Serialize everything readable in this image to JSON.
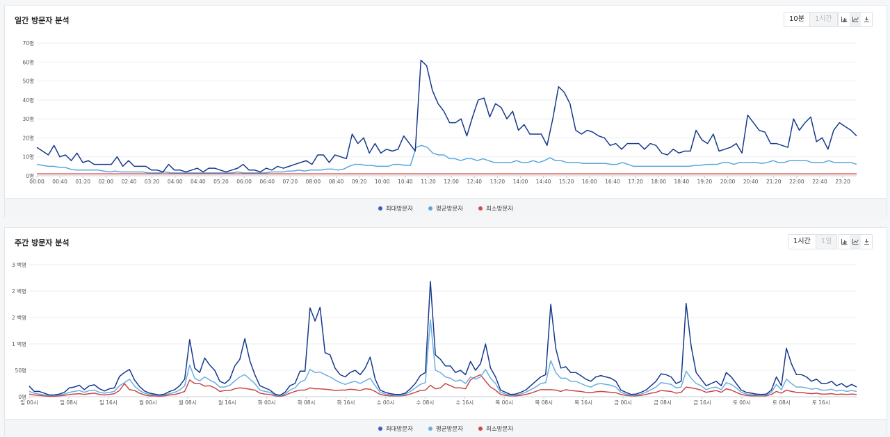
{
  "daily": {
    "title": "일간 방문자 분석",
    "tabs": [
      {
        "label": "10분",
        "active": true
      },
      {
        "label": "1시간",
        "active": false
      }
    ],
    "icons": [
      "bar-chart-icon",
      "line-chart-icon",
      "download-icon"
    ],
    "legend": [
      "최대방문자",
      "평균방문자",
      "최소방문자"
    ]
  },
  "weekly": {
    "title": "주간 방문자 분석",
    "tabs": [
      {
        "label": "1시간",
        "active": true
      },
      {
        "label": "1일",
        "active": false
      }
    ],
    "icons": [
      "bar-chart-icon",
      "line-chart-icon",
      "download-icon"
    ],
    "legend": [
      "최대방문자",
      "평균방문자",
      "최소방문자"
    ]
  },
  "chart_data": [
    {
      "type": "line",
      "title": "일간 방문자 분석",
      "ylim": [
        0,
        70
      ],
      "y_ticks": [
        "0명",
        "10명",
        "20명",
        "30명",
        "40명",
        "50명",
        "60명",
        "70명"
      ],
      "x_ticks": [
        "00:00",
        "00:40",
        "01:20",
        "02:00",
        "02:40",
        "03:20",
        "04:00",
        "04:40",
        "05:20",
        "06:00",
        "06:40",
        "07:20",
        "08:00",
        "08:40",
        "09:20",
        "10:00",
        "10:40",
        "11:20",
        "12:00",
        "12:40",
        "13:20",
        "14:00",
        "14:40",
        "15:20",
        "16:00",
        "16:40",
        "17:20",
        "18:00",
        "18:40",
        "19:20",
        "20:00",
        "20:40",
        "21:20",
        "22:00",
        "22:40",
        "23:20"
      ],
      "grid": true,
      "legend_position": "bottom",
      "colors": [
        "#16388c",
        "#5aa5de",
        "#d24a4a"
      ],
      "series": [
        {
          "name": "최대방문자",
          "values": [
            15,
            13,
            11,
            16,
            10,
            11,
            8,
            12,
            7,
            8,
            6,
            6,
            6,
            6,
            10,
            5,
            8,
            5,
            5,
            5,
            3,
            3,
            2,
            6,
            3,
            3,
            2,
            3,
            4,
            2,
            4,
            4,
            3,
            2,
            3,
            4,
            6,
            3,
            3,
            2,
            4,
            3,
            5,
            4,
            5,
            6,
            7,
            8,
            6,
            11,
            11,
            7,
            11,
            10,
            9,
            22,
            17,
            20,
            12,
            17,
            12,
            14,
            13,
            14,
            21,
            17,
            13,
            61,
            58,
            45,
            38,
            34,
            28,
            28,
            30,
            21,
            31,
            40,
            41,
            31,
            38,
            36,
            30,
            34,
            24,
            27,
            22,
            22,
            22,
            16,
            30,
            47,
            44,
            38,
            24,
            22,
            24,
            23,
            21,
            20,
            16,
            17,
            14,
            17,
            17,
            17,
            14,
            17,
            16,
            12,
            11,
            14,
            12,
            13,
            13,
            24,
            19,
            17,
            22,
            13,
            14,
            15,
            17,
            12,
            32,
            28,
            24,
            23,
            17,
            17,
            16,
            15,
            30,
            24,
            28,
            31,
            18,
            20,
            14,
            24,
            28,
            26,
            24,
            21
          ]
        },
        {
          "name": "평균방문자",
          "values": [
            6,
            5.5,
            5,
            5,
            4.5,
            4.5,
            3.5,
            3,
            3,
            3,
            3,
            3,
            2.5,
            2,
            2.5,
            2,
            2,
            2,
            2,
            2,
            1.5,
            1.5,
            1.5,
            2,
            1.5,
            1.5,
            1.5,
            1.5,
            1.5,
            1.5,
            1.5,
            1.5,
            1.5,
            1.5,
            1.5,
            1.5,
            2,
            1.5,
            1.5,
            1.5,
            1.5,
            1.5,
            2,
            2,
            2,
            2.5,
            2.5,
            3,
            2.5,
            3,
            3,
            3,
            3.5,
            3.5,
            3,
            3.5,
            5,
            6,
            6,
            5.5,
            5.5,
            5,
            5,
            5,
            6,
            6,
            5.5,
            5.5,
            15,
            16,
            15,
            12,
            11,
            11,
            9,
            9,
            8,
            9,
            9,
            8,
            9,
            8,
            7,
            7,
            7,
            7,
            8,
            7,
            7,
            8,
            7,
            8,
            9.5,
            8,
            8,
            7,
            7,
            7,
            6.5,
            6.5,
            6.5,
            6.5,
            6.5,
            6,
            6,
            7,
            6,
            5,
            5,
            5,
            5,
            5,
            5,
            5,
            5,
            5,
            5,
            5,
            5.5,
            5.5,
            6,
            6,
            6,
            7,
            7,
            6,
            7,
            7,
            7,
            7,
            6.5,
            7,
            8,
            7,
            7,
            8,
            8,
            8,
            8,
            7,
            7,
            7,
            8,
            7,
            7,
            7,
            7,
            6
          ]
        },
        {
          "name": "최소방문자",
          "values": [
            1,
            1,
            1,
            1,
            1,
            1,
            1,
            1,
            1,
            1,
            1,
            1,
            1,
            1,
            1,
            1,
            1,
            1,
            1,
            1,
            1,
            1,
            1,
            1,
            1,
            1,
            1,
            1,
            1,
            1,
            1,
            1,
            1,
            1,
            1,
            1,
            1,
            1,
            1,
            1,
            1,
            1,
            1,
            1,
            1,
            1,
            1,
            1,
            1,
            1,
            1,
            1,
            1,
            1,
            1,
            1,
            1,
            1,
            1,
            1,
            1,
            1,
            1,
            1,
            1,
            1,
            1,
            1,
            1,
            1,
            1,
            1,
            1,
            1,
            1,
            1,
            1,
            1,
            1,
            1,
            1,
            1,
            1,
            1,
            1,
            1,
            1,
            1,
            1,
            1,
            1,
            1,
            1,
            1,
            1,
            1,
            1,
            1,
            1,
            1,
            1,
            1,
            1,
            1,
            1,
            1,
            1,
            1,
            1,
            1,
            1,
            1,
            1,
            1,
            1,
            1,
            1,
            1,
            1,
            1,
            1,
            1,
            1,
            1,
            1,
            1,
            1,
            1,
            1,
            1,
            1,
            1,
            1,
            1,
            1,
            1,
            1,
            1,
            1,
            1,
            1,
            1,
            1,
            1
          ]
        }
      ]
    },
    {
      "type": "line",
      "title": "주간 방문자 분석",
      "ylim": [
        0,
        3
      ],
      "y_ticks": [
        "0명",
        "50명",
        "1 백명",
        "2 백명",
        "2 백명",
        "3 백명"
      ],
      "x_ticks": [
        "일 00시",
        "일 08시",
        "일 16시",
        "월 00시",
        "월 08시",
        "월 16시",
        "화 00시",
        "화 08시",
        "화 16시",
        "수 00시",
        "수 08시",
        "수 16시",
        "목 00시",
        "목 08시",
        "목 16시",
        "금 00시",
        "금 08시",
        "금 16시",
        "토 00시",
        "토 08시",
        "토 16시"
      ],
      "grid": true,
      "legend_position": "bottom",
      "colors": [
        "#16388c",
        "#6aaee2",
        "#c94747"
      ],
      "series": [
        {
          "name": "최대방문자",
          "values": [
            0.24,
            0.12,
            0.12,
            0.08,
            0.04,
            0.04,
            0.06,
            0.1,
            0.2,
            0.22,
            0.26,
            0.16,
            0.25,
            0.27,
            0.18,
            0.13,
            0.18,
            0.2,
            0.46,
            0.55,
            0.62,
            0.38,
            0.23,
            0.13,
            0.08,
            0.06,
            0.04,
            0.06,
            0.12,
            0.16,
            0.25,
            0.4,
            1.3,
            0.65,
            0.55,
            0.88,
            0.72,
            0.6,
            0.35,
            0.3,
            0.4,
            0.7,
            0.85,
            1.32,
            0.82,
            0.5,
            0.25,
            0.2,
            0.15,
            0.06,
            0.03,
            0.1,
            0.25,
            0.3,
            0.58,
            0.58,
            2.02,
            1.72,
            2.03,
            1.0,
            0.95,
            0.65,
            0.5,
            0.45,
            0.55,
            0.6,
            0.5,
            0.65,
            0.9,
            0.4,
            0.15,
            0.1,
            0.07,
            0.05,
            0.05,
            0.08,
            0.18,
            0.3,
            0.48,
            0.55,
            2.62,
            0.95,
            0.85,
            0.7,
            0.7,
            0.55,
            0.6,
            0.5,
            0.8,
            0.6,
            0.75,
            1.2,
            0.65,
            0.45,
            0.15,
            0.1,
            0.05,
            0.06,
            0.1,
            0.15,
            0.25,
            0.35,
            0.45,
            0.5,
            2.1,
            1.1,
            0.65,
            0.68,
            0.55,
            0.55,
            0.48,
            0.4,
            0.35,
            0.45,
            0.48,
            0.45,
            0.42,
            0.35,
            0.15,
            0.1,
            0.05,
            0.06,
            0.1,
            0.15,
            0.25,
            0.35,
            0.52,
            0.5,
            0.45,
            0.3,
            0.35,
            2.12,
            1.15,
            0.55,
            0.4,
            0.25,
            0.3,
            0.35,
            0.25,
            0.55,
            0.45,
            0.3,
            0.15,
            0.1,
            0.08,
            0.06,
            0.05,
            0.06,
            0.15,
            0.45,
            0.25,
            1.1,
            0.75,
            0.5,
            0.5,
            0.45,
            0.35,
            0.4,
            0.3,
            0.3,
            0.35,
            0.25,
            0.3,
            0.22,
            0.28,
            0.22
          ]
        },
        {
          "name": "평균방문자",
          "values": [
            0.12,
            0.08,
            0.06,
            0.04,
            0.03,
            0.03,
            0.04,
            0.06,
            0.1,
            0.12,
            0.14,
            0.1,
            0.14,
            0.15,
            0.1,
            0.08,
            0.1,
            0.12,
            0.25,
            0.32,
            0.4,
            0.24,
            0.14,
            0.08,
            0.05,
            0.04,
            0.03,
            0.04,
            0.07,
            0.1,
            0.15,
            0.25,
            0.72,
            0.42,
            0.36,
            0.45,
            0.38,
            0.32,
            0.22,
            0.22,
            0.26,
            0.36,
            0.45,
            0.5,
            0.4,
            0.3,
            0.15,
            0.12,
            0.1,
            0.04,
            0.02,
            0.06,
            0.15,
            0.2,
            0.33,
            0.38,
            0.62,
            0.55,
            0.56,
            0.5,
            0.45,
            0.38,
            0.32,
            0.28,
            0.32,
            0.35,
            0.3,
            0.36,
            0.42,
            0.25,
            0.1,
            0.06,
            0.05,
            0.03,
            0.03,
            0.05,
            0.12,
            0.2,
            0.28,
            0.32,
            1.75,
            0.6,
            0.55,
            0.45,
            0.42,
            0.35,
            0.38,
            0.3,
            0.45,
            0.4,
            0.45,
            0.62,
            0.42,
            0.3,
            0.1,
            0.06,
            0.03,
            0.04,
            0.06,
            0.1,
            0.16,
            0.22,
            0.3,
            0.32,
            0.82,
            0.55,
            0.42,
            0.42,
            0.35,
            0.35,
            0.3,
            0.25,
            0.22,
            0.28,
            0.3,
            0.28,
            0.26,
            0.22,
            0.1,
            0.06,
            0.03,
            0.04,
            0.06,
            0.1,
            0.16,
            0.22,
            0.32,
            0.3,
            0.28,
            0.2,
            0.22,
            0.58,
            0.42,
            0.3,
            0.25,
            0.16,
            0.2,
            0.22,
            0.16,
            0.32,
            0.28,
            0.2,
            0.1,
            0.06,
            0.05,
            0.04,
            0.03,
            0.04,
            0.1,
            0.28,
            0.16,
            0.4,
            0.3,
            0.22,
            0.22,
            0.2,
            0.17,
            0.19,
            0.15,
            0.15,
            0.17,
            0.13,
            0.15,
            0.12,
            0.14,
            0.12
          ]
        },
        {
          "name": "최소방문자",
          "values": [
            0.06,
            0.04,
            0.03,
            0.02,
            0.01,
            0.01,
            0.02,
            0.03,
            0.05,
            0.06,
            0.07,
            0.05,
            0.07,
            0.08,
            0.05,
            0.04,
            0.05,
            0.07,
            0.14,
            0.3,
            0.16,
            0.14,
            0.08,
            0.04,
            0.02,
            0.02,
            0.01,
            0.02,
            0.04,
            0.05,
            0.08,
            0.12,
            0.38,
            0.3,
            0.3,
            0.24,
            0.25,
            0.2,
            0.12,
            0.14,
            0.14,
            0.18,
            0.2,
            0.19,
            0.17,
            0.15,
            0.08,
            0.06,
            0.05,
            0.02,
            0.01,
            0.03,
            0.08,
            0.12,
            0.15,
            0.15,
            0.2,
            0.18,
            0.18,
            0.17,
            0.16,
            0.14,
            0.15,
            0.15,
            0.17,
            0.16,
            0.14,
            0.18,
            0.17,
            0.12,
            0.05,
            0.03,
            0.02,
            0.02,
            0.02,
            0.03,
            0.06,
            0.1,
            0.14,
            0.15,
            0.26,
            0.18,
            0.2,
            0.3,
            0.25,
            0.2,
            0.2,
            0.18,
            0.38,
            0.45,
            0.5,
            0.35,
            0.22,
            0.15,
            0.05,
            0.03,
            0.02,
            0.02,
            0.03,
            0.05,
            0.08,
            0.12,
            0.16,
            0.16,
            0.16,
            0.15,
            0.12,
            0.16,
            0.14,
            0.13,
            0.12,
            0.1,
            0.09,
            0.11,
            0.12,
            0.11,
            0.1,
            0.09,
            0.05,
            0.03,
            0.02,
            0.02,
            0.03,
            0.05,
            0.08,
            0.1,
            0.14,
            0.13,
            0.12,
            0.08,
            0.1,
            0.22,
            0.2,
            0.18,
            0.15,
            0.1,
            0.12,
            0.14,
            0.1,
            0.18,
            0.15,
            0.1,
            0.05,
            0.03,
            0.02,
            0.02,
            0.02,
            0.02,
            0.05,
            0.12,
            0.08,
            0.15,
            0.12,
            0.1,
            0.1,
            0.08,
            0.07,
            0.08,
            0.06,
            0.06,
            0.07,
            0.05,
            0.06,
            0.05,
            0.06,
            0.05
          ]
        }
      ]
    }
  ]
}
